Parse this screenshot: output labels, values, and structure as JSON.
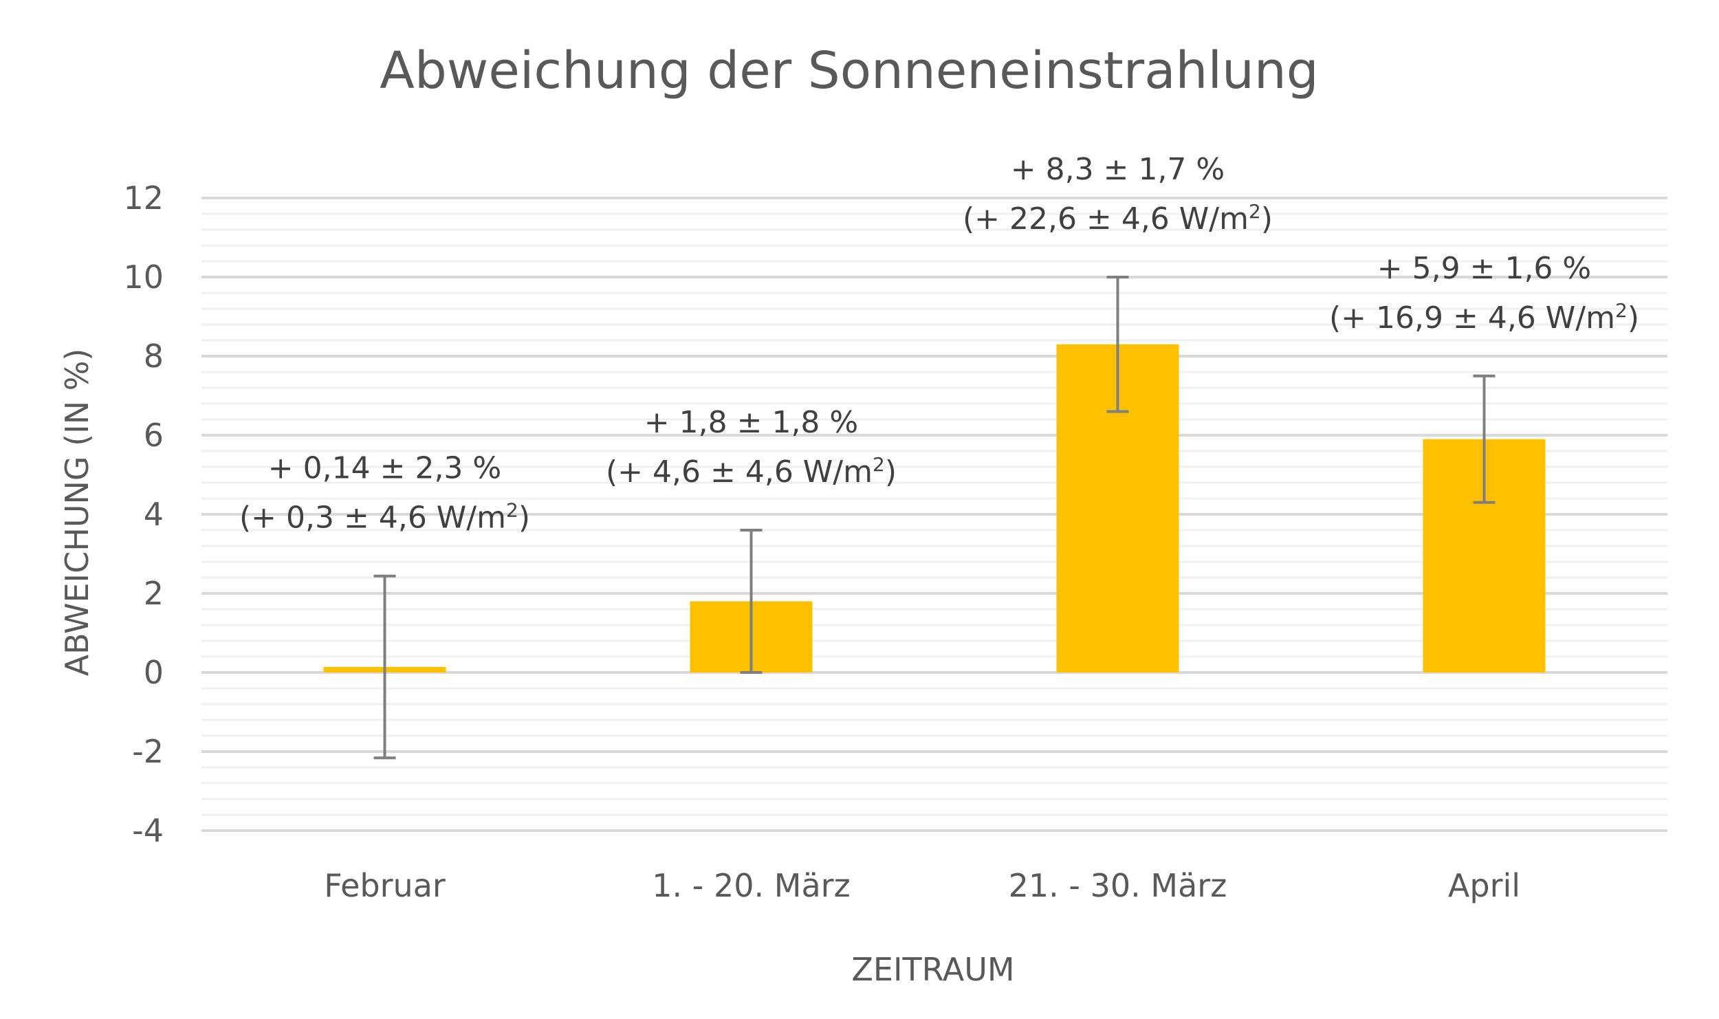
{
  "chart_data": {
    "type": "bar",
    "title": "Abweichung der Sonneneinstrahlung",
    "xlabel": "ZEITRAUM",
    "ylabel": "ABWEICHUNG (IN %)",
    "ylim": [
      -4,
      12
    ],
    "yticks": [
      -4,
      -2,
      0,
      2,
      4,
      6,
      8,
      10,
      12
    ],
    "yticks_label": [
      "-4",
      "-2",
      "0",
      "2",
      "4",
      "6",
      "8",
      "10",
      "12"
    ],
    "grid": true,
    "categories": [
      "Februar",
      "1. - 20. März",
      "21. - 30. März",
      "April"
    ],
    "values": [
      0.14,
      1.8,
      8.3,
      5.9
    ],
    "errors": [
      2.3,
      1.8,
      1.7,
      1.6
    ],
    "data_labels": [
      {
        "line1": "+ 0,14 ± 2,3 %",
        "line2": "(+ 0,3 ± 4,6 W/m",
        "sup": "2",
        "close": ")"
      },
      {
        "line1": "+ 1,8 ± 1,8 %",
        "line2": "(+ 4,6 ± 4,6 W/m",
        "sup": "2",
        "close": ")"
      },
      {
        "line1": "+ 8,3 ± 1,7 %",
        "line2": "(+ 22,6 ± 4,6 W/m",
        "sup": "2",
        "close": ")"
      },
      {
        "line1": "+ 5,9 ± 1,6 %",
        "line2": "(+ 16,9 ± 4,6 W/m",
        "sup": "2",
        "close": ")"
      }
    ],
    "bar_color": "#FFC000",
    "error_color": "#7F7F7F",
    "grid_color": "#D9D9D9",
    "minor_grid_color": "#F0F0F0"
  }
}
